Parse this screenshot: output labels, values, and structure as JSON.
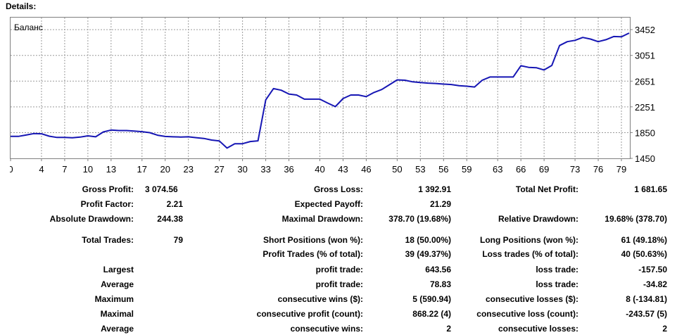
{
  "header": {
    "title": "Details:"
  },
  "chart_data": {
    "type": "line",
    "title": "Баланс",
    "x_ticks": [
      "0",
      "4",
      "7",
      "10",
      "13",
      "17",
      "20",
      "23",
      "27",
      "30",
      "33",
      "36",
      "40",
      "43",
      "46",
      "50",
      "53",
      "56",
      "59",
      "63",
      "66",
      "69",
      "73",
      "76",
      "79"
    ],
    "y_ticks": [
      "3452",
      "3051",
      "2651",
      "2251",
      "1850",
      "1450"
    ],
    "ylim": [
      1450,
      3650
    ],
    "xlim": [
      0,
      80
    ],
    "line_color": "#1616b4",
    "series": [
      {
        "x": [
          0,
          1,
          2,
          3,
          4,
          5,
          6,
          7,
          8,
          9,
          10,
          11,
          12,
          13,
          14,
          15,
          16,
          17,
          18,
          19,
          20,
          21,
          22,
          23,
          24,
          25,
          26,
          27,
          28,
          29,
          30,
          31,
          32,
          33,
          34,
          35,
          36,
          37,
          38,
          39,
          40,
          41,
          42,
          43,
          44,
          45,
          46,
          47,
          48,
          49,
          50,
          51,
          52,
          53,
          54,
          55,
          56,
          57,
          58,
          59,
          60,
          61,
          62,
          63,
          64,
          65,
          66,
          67,
          68,
          69,
          70,
          71,
          72,
          73,
          74,
          75,
          76,
          77,
          78,
          79,
          80
        ],
        "y": [
          1792,
          1792,
          1812,
          1835,
          1832,
          1795,
          1775,
          1775,
          1770,
          1780,
          1800,
          1785,
          1860,
          1890,
          1882,
          1882,
          1875,
          1865,
          1850,
          1810,
          1790,
          1785,
          1782,
          1785,
          1772,
          1760,
          1735,
          1720,
          1610,
          1678,
          1678,
          1712,
          1722,
          2360,
          2535,
          2510,
          2450,
          2435,
          2370,
          2370,
          2370,
          2310,
          2255,
          2380,
          2435,
          2435,
          2410,
          2475,
          2520,
          2595,
          2670,
          2665,
          2640,
          2630,
          2620,
          2615,
          2605,
          2598,
          2580,
          2572,
          2560,
          2665,
          2715,
          2715,
          2715,
          2715,
          2890,
          2865,
          2860,
          2825,
          2895,
          3205,
          3265,
          3285,
          3330,
          3305,
          3265,
          3295,
          3345,
          3340,
          3398
        ]
      }
    ]
  },
  "stats": {
    "gross_profit": {
      "label": "Gross Profit:",
      "value": "3 074.56"
    },
    "gross_loss": {
      "label": "Gross Loss:",
      "value": "1 392.91"
    },
    "total_net_profit": {
      "label": "Total Net Profit:",
      "value": "1 681.65"
    },
    "profit_factor": {
      "label": "Profit Factor:",
      "value": "2.21"
    },
    "expected_payoff": {
      "label": "Expected Payoff:",
      "value": "21.29"
    },
    "absolute_drawdown": {
      "label": "Absolute Drawdown:",
      "value": "244.38"
    },
    "maximal_drawdown": {
      "label": "Maximal Drawdown:",
      "value": "378.70 (19.68%)"
    },
    "relative_drawdown": {
      "label": "Relative Drawdown:",
      "value": "19.68% (378.70)"
    },
    "total_trades": {
      "label": "Total Trades:",
      "value": "79"
    },
    "short_positions": {
      "label": "Short Positions (won %):",
      "value": "18 (50.00%)"
    },
    "long_positions": {
      "label": "Long Positions (won %):",
      "value": "61 (49.18%)"
    },
    "profit_trades": {
      "label": "Profit Trades (% of total):",
      "value": "39 (49.37%)"
    },
    "loss_trades": {
      "label": "Loss trades (% of total):",
      "value": "40 (50.63%)"
    },
    "largest": {
      "label": "Largest",
      "profit_label": "profit trade:",
      "profit_value": "643.56",
      "loss_label": "loss trade:",
      "loss_value": "-157.50"
    },
    "average": {
      "label": "Average",
      "profit_label": "profit trade:",
      "profit_value": "78.83",
      "loss_label": "loss trade:",
      "loss_value": "-34.82"
    },
    "maximum": {
      "label": "Maximum",
      "wins_label": "consecutive wins ($):",
      "wins_value": "5 (590.94)",
      "losses_label": "consecutive losses ($):",
      "losses_value": "8 (-134.81)"
    },
    "maximal": {
      "label": "Maximal",
      "profit_label": "consecutive profit (count):",
      "profit_value": "868.22 (4)",
      "loss_label": "consecutive loss (count):",
      "loss_value": "-243.57 (5)"
    },
    "average_consec": {
      "label": "Average",
      "wins_label": "consecutive wins:",
      "wins_value": "2",
      "losses_label": "consecutive losses:",
      "losses_value": "2"
    }
  }
}
